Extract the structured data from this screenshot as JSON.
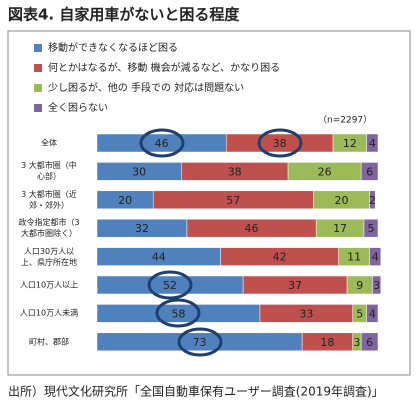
{
  "chart_data": {
    "type": "stacked_bar_horizontal",
    "title": "図表4. 自家用車がないと困る程度",
    "annotation": "（n=2297）",
    "source": "出所）現代文化研究所「全国自動車保有ユーザー調査(2019年調査)」",
    "categories": [
      "全体",
      "3 大都市圏（中\n心部）",
      "3 大都市圏（近\n郊・郊外）",
      "政令指定都市（3\n大都市圏除く）",
      "人口30万人以\n上、県庁所在地",
      "人口10万人以上",
      "人口10万人未満",
      "町村、郡部"
    ],
    "series": [
      {
        "name": "移動ができなくなるほど困る",
        "color": "#4f81bd",
        "values": [
          46,
          30,
          20,
          32,
          44,
          52,
          58,
          73
        ]
      },
      {
        "name": "何とかはなるが、移動 機会が減るなど、かなり困る",
        "color": "#c0504d",
        "values": [
          38,
          38,
          57,
          46,
          42,
          37,
          33,
          18
        ]
      },
      {
        "name": "少し困るが、他の 手段での 対応は問題ない",
        "color": "#9bbb59",
        "values": [
          12,
          26,
          20,
          17,
          11,
          9,
          5,
          3
        ]
      },
      {
        "name": "全く困らない",
        "color": "#8064a2",
        "values": [
          4,
          6,
          2,
          5,
          4,
          3,
          4,
          6
        ]
      }
    ]
  }
}
